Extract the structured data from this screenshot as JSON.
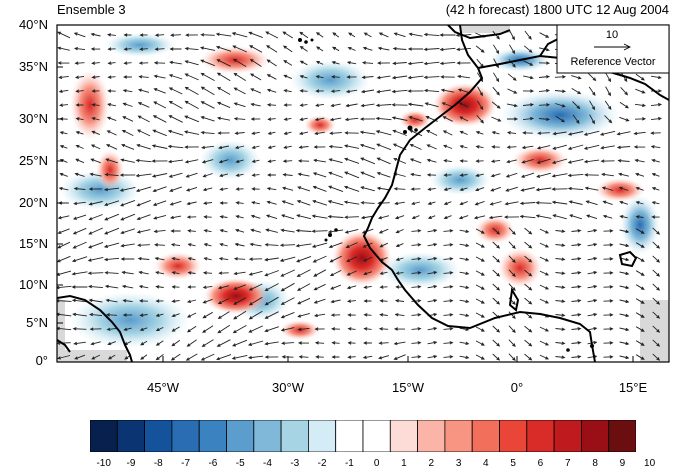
{
  "header": {
    "left_title": "Ensemble 3",
    "right_title": "(42 h forecast) 1800 UTC 12 Aug 2004"
  },
  "map": {
    "lat_ticks": [
      "40°N",
      "35°N",
      "30°N",
      "25°N",
      "20°N",
      "15°N",
      "10°N",
      "5°N",
      "0°"
    ],
    "lon_ticks": [
      "45°W",
      "30°W",
      "15°W",
      "0°",
      "15°E"
    ],
    "reference_vector": {
      "magnitude": "10",
      "label": "Reference Vector"
    },
    "colors": {
      "land_outline": "#000000",
      "background": "#ffffff",
      "missing": "#d9d9d9"
    }
  },
  "colorbar": {
    "labels": [
      "-10",
      "-9",
      "-8",
      "-7",
      "-6",
      "-5",
      "-4",
      "-3",
      "-2",
      "-1",
      "0",
      "1",
      "2",
      "3",
      "4",
      "5",
      "6",
      "7",
      "8",
      "9",
      "10"
    ],
    "colors": [
      "#08204d",
      "#0b3572",
      "#14539c",
      "#2a6db3",
      "#3a82c0",
      "#5b9dcc",
      "#7fb8d8",
      "#a6d4e4",
      "#d3ecf6",
      "#ffffff",
      "#ffffff",
      "#fddbd7",
      "#fbb5a8",
      "#f79482",
      "#f2705b",
      "#ea4637",
      "#d92b27",
      "#bf1a1d",
      "#9a0f16",
      "#6b0e10"
    ]
  }
}
